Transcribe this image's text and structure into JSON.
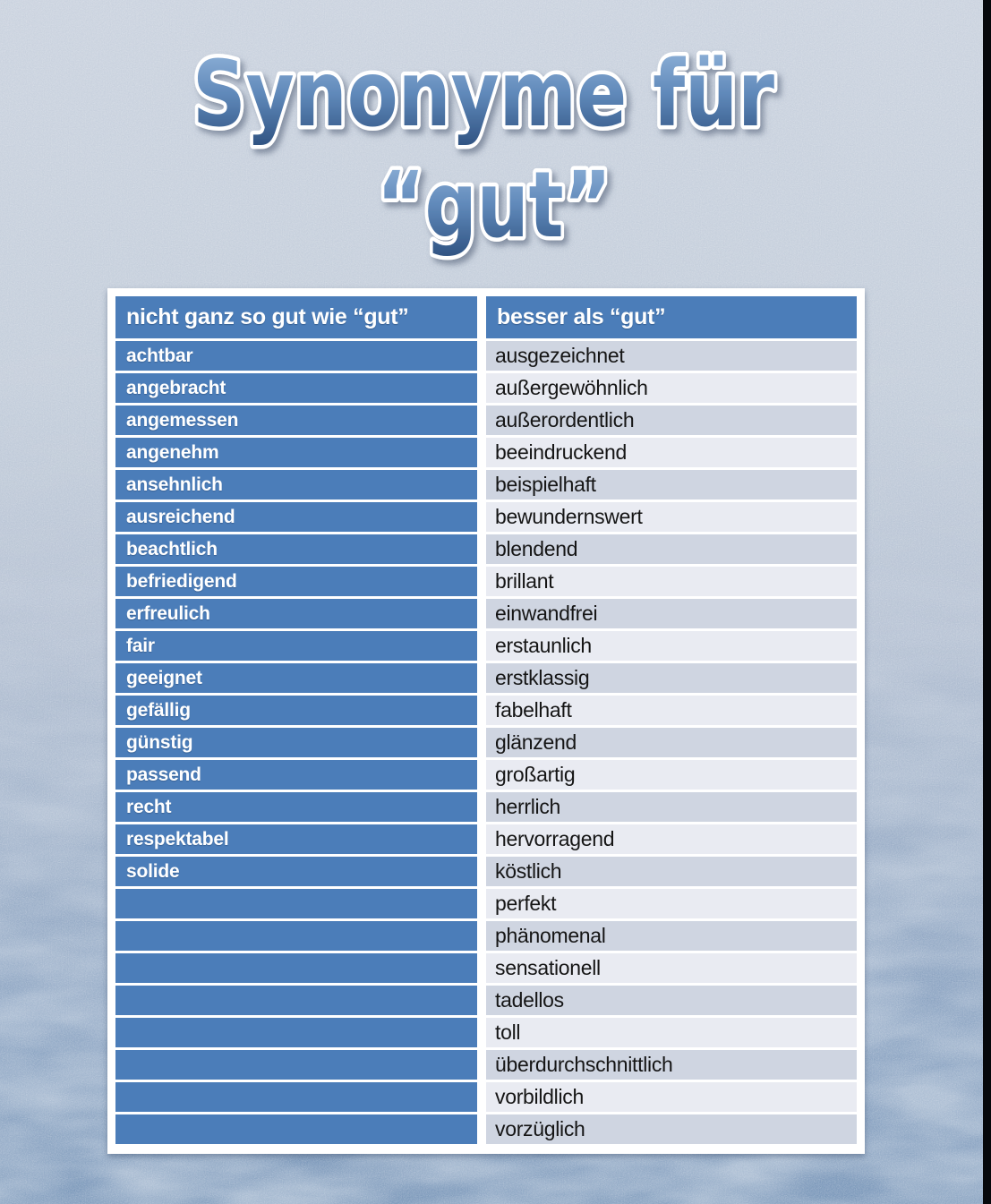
{
  "title": {
    "line1": "Synonyme für",
    "line2": "“gut”"
  },
  "table": {
    "headers": [
      "nicht ganz so gut wie “gut”",
      "besser als “gut”"
    ],
    "rows": [
      {
        "left": "achtbar",
        "right": "ausgezeichnet"
      },
      {
        "left": "angebracht",
        "right": "außergewöhnlich"
      },
      {
        "left": "angemessen",
        "right": "außerordentlich"
      },
      {
        "left": "angenehm",
        "right": "beeindruckend"
      },
      {
        "left": "ansehnlich",
        "right": "beispielhaft"
      },
      {
        "left": "ausreichend",
        "right": "bewundernswert"
      },
      {
        "left": "beachtlich",
        "right": "blendend"
      },
      {
        "left": "befriedigend",
        "right": "brillant"
      },
      {
        "left": "erfreulich",
        "right": "einwandfrei"
      },
      {
        "left": "fair",
        "right": "erstaunlich"
      },
      {
        "left": "geeignet",
        "right": "erstklassig"
      },
      {
        "left": "gefällig",
        "right": "fabelhaft"
      },
      {
        "left": "günstig",
        "right": "glänzend"
      },
      {
        "left": "passend",
        "right": "großartig"
      },
      {
        "left": "recht",
        "right": "herrlich"
      },
      {
        "left": "respektabel",
        "right": "hervorragend"
      },
      {
        "left": "solide",
        "right": "köstlich"
      },
      {
        "left": "",
        "right": "perfekt"
      },
      {
        "left": "",
        "right": "phänomenal"
      },
      {
        "left": "",
        "right": "sensationell"
      },
      {
        "left": "",
        "right": "tadellos"
      },
      {
        "left": "",
        "right": "toll"
      },
      {
        "left": "",
        "right": "überdurchschnittlich"
      },
      {
        "left": "",
        "right": "vorbildlich"
      },
      {
        "left": "",
        "right": "vorzüglich"
      }
    ]
  },
  "colors": {
    "header-bg": "#4b7db9",
    "header-text": "#ffffff",
    "left-cell-bg": "#4b7db9",
    "left-text": "#ffffff",
    "row-dark": "#cfd5e1",
    "row-light": "#e9ebf2",
    "right-text": "#151515",
    "panel-bg": "#ffffff",
    "edge-strip": "#06080c",
    "title-gradient-top": "#96b8dd",
    "title-gradient-mid": "#5f88b9",
    "title-gradient-bottom": "#2e5180",
    "title-outline": "#ffffff",
    "background-top": "#cbd3df",
    "background-bottom": "#7b98ba"
  }
}
